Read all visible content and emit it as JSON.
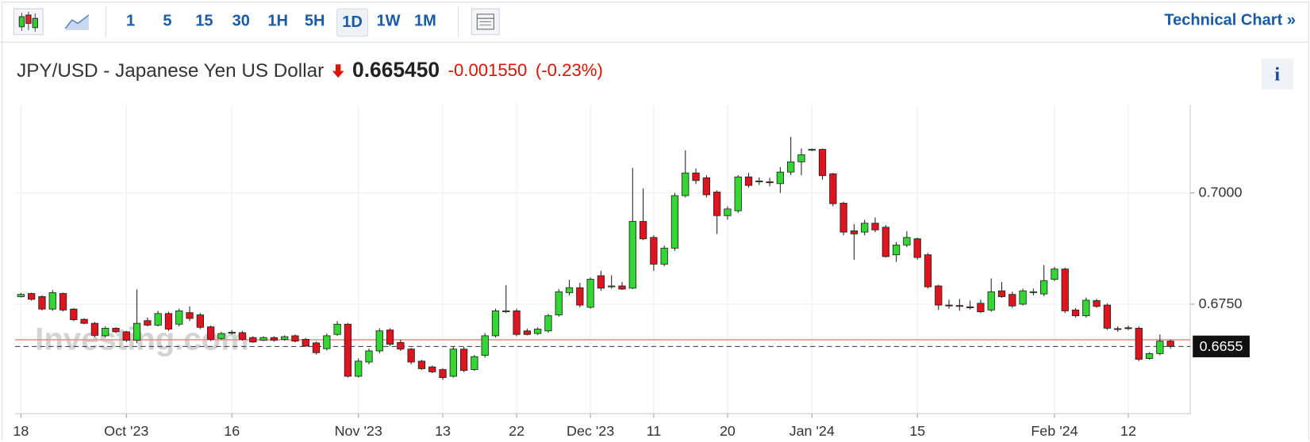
{
  "toolbar": {
    "intervals": [
      "1",
      "5",
      "15",
      "30",
      "1H",
      "5H",
      "1D",
      "1W",
      "1M"
    ],
    "active": "1D",
    "link": "Technical Chart",
    "link_arrow": "»"
  },
  "info": "i",
  "chart_data": {
    "type": "candlestick",
    "title": "JPY/USD - Japanese Yen US Dollar",
    "price": "0.665450",
    "change": "-0.001550",
    "change_percent": "(-0.23%)",
    "watermark": "Investing.com",
    "categories": [
      "18",
      null,
      null,
      null,
      null,
      null,
      null,
      null,
      null,
      null,
      "Oct '23",
      null,
      null,
      null,
      null,
      null,
      null,
      null,
      null,
      null,
      "16",
      null,
      null,
      null,
      null,
      null,
      null,
      null,
      null,
      null,
      null,
      null,
      "Nov '23",
      null,
      null,
      null,
      null,
      null,
      null,
      null,
      "13",
      null,
      null,
      null,
      null,
      null,
      null,
      "22",
      null,
      null,
      null,
      null,
      null,
      null,
      "Dec '23",
      null,
      null,
      null,
      null,
      null,
      "11",
      null,
      null,
      null,
      null,
      null,
      null,
      "20",
      null,
      null,
      null,
      null,
      null,
      null,
      null,
      "Jan '24",
      null,
      null,
      null,
      null,
      null,
      null,
      null,
      null,
      null,
      "15",
      null,
      null,
      null,
      null,
      null,
      null,
      null,
      null,
      null,
      null,
      null,
      null,
      "Feb '24",
      null,
      null,
      null,
      null,
      null,
      null,
      "12",
      null,
      null,
      null,
      null
    ],
    "open": [
      0.6767,
      0.6774,
      0.6767,
      0.6739,
      0.6774,
      0.6739,
      0.6716,
      0.6707,
      0.6679,
      0.6696,
      0.6688,
      0.6669,
      0.6713,
      0.6703,
      0.6729,
      0.6705,
      0.6731,
      0.6726,
      0.6699,
      0.6673,
      0.6685,
      0.6686,
      0.6675,
      0.6669,
      0.6675,
      0.6671,
      0.6679,
      0.6671,
      0.6663,
      0.665,
      0.6682,
      0.6705,
      0.6588,
      0.662,
      0.6645,
      0.6692,
      0.6664,
      0.6649,
      0.6622,
      0.6609,
      0.6603,
      0.6588,
      0.6649,
      0.6603,
      0.6635,
      0.6679,
      0.6733,
      0.6735,
      0.669,
      0.6684,
      0.669,
      0.6726,
      0.6776,
      0.6787,
      0.6743,
      0.6814,
      0.6789,
      0.6791,
      0.6786,
      0.6936,
      0.69,
      0.684,
      0.6876,
      0.6994,
      0.7045,
      0.7034,
      0.7002,
      0.6949,
      0.696,
      0.7036,
      0.7025,
      0.7025,
      0.7021,
      0.7047,
      0.707,
      0.7096,
      0.7098,
      0.7043,
      0.6977,
      0.6915,
      0.6912,
      0.6932,
      0.6923,
      0.6861,
      0.6883,
      0.6897,
      0.6861,
      0.6791,
      0.6748,
      0.6747,
      0.6744,
      0.6752,
      0.6737,
      0.678,
      0.6772,
      0.675,
      0.6776,
      0.6773,
      0.6806,
      0.6829,
      0.6737,
      0.6724,
      0.6758,
      0.6748,
      0.6695,
      0.6697,
      0.6696,
      0.6628,
      0.6639,
      0.6667
    ],
    "high": [
      0.6775,
      0.6776,
      0.677,
      0.6782,
      0.6776,
      0.6741,
      0.6718,
      0.671,
      0.67,
      0.6698,
      0.669,
      0.6783,
      0.672,
      0.6735,
      0.6733,
      0.674,
      0.6745,
      0.673,
      0.6702,
      0.6688,
      0.6692,
      0.669,
      0.6678,
      0.6678,
      0.6678,
      0.668,
      0.6682,
      0.6674,
      0.6666,
      0.6684,
      0.6712,
      0.6708,
      0.6628,
      0.665,
      0.6696,
      0.6696,
      0.667,
      0.6652,
      0.6625,
      0.6612,
      0.6606,
      0.6655,
      0.6654,
      0.6636,
      0.6685,
      0.674,
      0.6793,
      0.674,
      0.6695,
      0.6698,
      0.6728,
      0.6784,
      0.6805,
      0.6798,
      0.681,
      0.6825,
      0.6815,
      0.68,
      0.7056,
      0.701,
      0.6905,
      0.6882,
      0.7,
      0.7096,
      0.7055,
      0.704,
      0.7006,
      0.697,
      0.704,
      0.7045,
      0.7035,
      0.7034,
      0.7058,
      0.7126,
      0.71,
      0.71,
      0.71,
      0.7045,
      0.698,
      0.693,
      0.694,
      0.6945,
      0.6928,
      0.689,
      0.6914,
      0.69,
      0.6865,
      0.6794,
      0.676,
      0.6762,
      0.6758,
      0.676,
      0.6808,
      0.68,
      0.6778,
      0.6785,
      0.6785,
      0.6838,
      0.6834,
      0.6832,
      0.6741,
      0.6765,
      0.6762,
      0.6752,
      0.67,
      0.6702,
      0.67,
      0.6642,
      0.6682,
      0.667
    ],
    "low": [
      0.6765,
      0.6758,
      0.6736,
      0.6735,
      0.6734,
      0.6712,
      0.6705,
      0.6676,
      0.6675,
      0.6685,
      0.6665,
      0.6662,
      0.67,
      0.67,
      0.669,
      0.67,
      0.6712,
      0.6694,
      0.6667,
      0.667,
      0.6682,
      0.6668,
      0.6663,
      0.6667,
      0.6666,
      0.6668,
      0.6664,
      0.6654,
      0.6637,
      0.6646,
      0.6679,
      0.6585,
      0.6585,
      0.6615,
      0.664,
      0.6656,
      0.6645,
      0.6615,
      0.6602,
      0.6595,
      0.658,
      0.6585,
      0.6597,
      0.66,
      0.663,
      0.6675,
      0.673,
      0.6678,
      0.668,
      0.6681,
      0.6686,
      0.6722,
      0.677,
      0.6743,
      0.674,
      0.678,
      0.6785,
      0.6782,
      0.6784,
      0.6894,
      0.6825,
      0.6835,
      0.687,
      0.699,
      0.702,
      0.699,
      0.6908,
      0.694,
      0.6955,
      0.7012,
      0.7018,
      0.7015,
      0.7,
      0.704,
      0.704,
      0.7094,
      0.703,
      0.697,
      0.6905,
      0.685,
      0.6905,
      0.6912,
      0.6855,
      0.6845,
      0.6878,
      0.685,
      0.6785,
      0.6737,
      0.674,
      0.6735,
      0.6738,
      0.673,
      0.6733,
      0.6764,
      0.6742,
      0.6747,
      0.677,
      0.6768,
      0.6802,
      0.673,
      0.672,
      0.672,
      0.6742,
      0.6692,
      0.6688,
      0.6692,
      0.6622,
      0.6625,
      0.6635,
      0.665
    ],
    "close": [
      0.6772,
      0.6761,
      0.6739,
      0.6776,
      0.6737,
      0.6715,
      0.6707,
      0.668,
      0.6696,
      0.6688,
      0.6669,
      0.6707,
      0.6703,
      0.6729,
      0.6694,
      0.6735,
      0.6718,
      0.6698,
      0.6671,
      0.6684,
      0.6687,
      0.6671,
      0.6665,
      0.6675,
      0.6669,
      0.6677,
      0.6667,
      0.6656,
      0.6641,
      0.6679,
      0.6705,
      0.6588,
      0.6622,
      0.6645,
      0.669,
      0.666,
      0.6649,
      0.662,
      0.6605,
      0.6598,
      0.6585,
      0.6649,
      0.6601,
      0.6632,
      0.6679,
      0.6735,
      0.6735,
      0.6682,
      0.6682,
      0.6694,
      0.6724,
      0.6778,
      0.6787,
      0.6748,
      0.6806,
      0.6786,
      0.6791,
      0.6784,
      0.6936,
      0.6897,
      0.684,
      0.6876,
      0.6994,
      0.7045,
      0.7028,
      0.6996,
      0.6949,
      0.6964,
      0.7036,
      0.7017,
      0.7027,
      0.7023,
      0.7047,
      0.707,
      0.7086,
      0.7098,
      0.7039,
      0.6976,
      0.6912,
      0.6908,
      0.6932,
      0.6917,
      0.6857,
      0.6883,
      0.69,
      0.6855,
      0.6789,
      0.6748,
      0.6746,
      0.6745,
      0.6742,
      0.6733,
      0.6778,
      0.6767,
      0.6746,
      0.678,
      0.6778,
      0.6803,
      0.6829,
      0.6735,
      0.6724,
      0.6759,
      0.6745,
      0.6696,
      0.6694,
      0.6695,
      0.6626,
      0.6639,
      0.6667,
      0.6655
    ],
    "up_color": "#33d633",
    "down_color": "#e0141e",
    "wick_color": "#222",
    "prev_close": 0.667,
    "prev_close_color": "#f08c8c",
    "last_price": 0.6655,
    "ylim": [
      0.6504,
      0.7199
    ],
    "yticks": [
      {
        "value": 0.675,
        "label": "0.6750"
      },
      {
        "value": 0.7,
        "label": "0.7000"
      }
    ],
    "grid": true
  }
}
